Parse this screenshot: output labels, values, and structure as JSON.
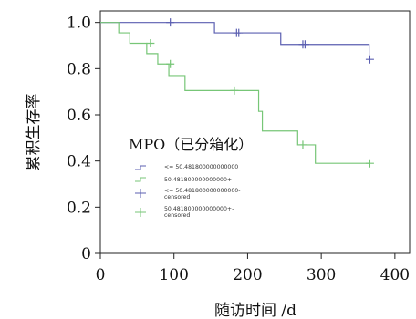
{
  "chart_data": {
    "type": "line",
    "subtype": "kaplan-meier-step",
    "xlabel": "随访时间 /d",
    "ylabel": "累积生存率",
    "xlim": [
      0,
      420
    ],
    "ylim": [
      0,
      1.05
    ],
    "x_ticks": [
      "0",
      "100",
      "200",
      "300",
      "400"
    ],
    "y_ticks": [
      "0",
      "0.2",
      "0.4",
      "0.6",
      "0.8",
      "1.0"
    ],
    "grid": false,
    "legend_title": "MPO（已分箱化）",
    "legend_position": "center-left",
    "legend_entries": [
      "<= 50.481800000000000",
      "50.481800000000000+",
      "<= 50.481800000000000-censored",
      "50.481800000000000+-censored"
    ],
    "series": [
      {
        "name": "<= 50.481800000000000",
        "color": "#5b5fb1",
        "steps": [
          [
            0,
            1.0
          ],
          [
            155,
            1.0
          ],
          [
            155,
            0.955
          ],
          [
            245,
            0.955
          ],
          [
            245,
            0.905
          ],
          [
            365,
            0.905
          ],
          [
            365,
            0.84
          ]
        ],
        "censored": [
          [
            95,
            1.0
          ],
          [
            185,
            0.955
          ],
          [
            188,
            0.955
          ],
          [
            275,
            0.905
          ],
          [
            278,
            0.905
          ],
          [
            366,
            0.84
          ]
        ]
      },
      {
        "name": "50.481800000000000+",
        "color": "#77c677",
        "steps": [
          [
            0,
            1.0
          ],
          [
            25,
            1.0
          ],
          [
            25,
            0.955
          ],
          [
            40,
            0.955
          ],
          [
            40,
            0.91
          ],
          [
            63,
            0.91
          ],
          [
            63,
            0.865
          ],
          [
            78,
            0.865
          ],
          [
            78,
            0.82
          ],
          [
            93,
            0.82
          ],
          [
            93,
            0.77
          ],
          [
            115,
            0.77
          ],
          [
            115,
            0.705
          ],
          [
            215,
            0.705
          ],
          [
            215,
            0.615
          ],
          [
            220,
            0.615
          ],
          [
            220,
            0.53
          ],
          [
            268,
            0.53
          ],
          [
            268,
            0.47
          ],
          [
            292,
            0.47
          ],
          [
            292,
            0.39
          ],
          [
            366,
            0.39
          ]
        ],
        "censored": [
          [
            68,
            0.91
          ],
          [
            95,
            0.82
          ],
          [
            182,
            0.705
          ],
          [
            275,
            0.47
          ],
          [
            366,
            0.39
          ]
        ]
      }
    ]
  },
  "labels": {
    "legend_entry_1": "<= 50.481800000000000",
    "legend_entry_2": "50.481800000000000+",
    "legend_entry_3_line1": "<= 50.481800000000000-",
    "legend_entry_3_line2": "censored",
    "legend_entry_4_line1": "50.481800000000000+-",
    "legend_entry_4_line2": "censored"
  }
}
